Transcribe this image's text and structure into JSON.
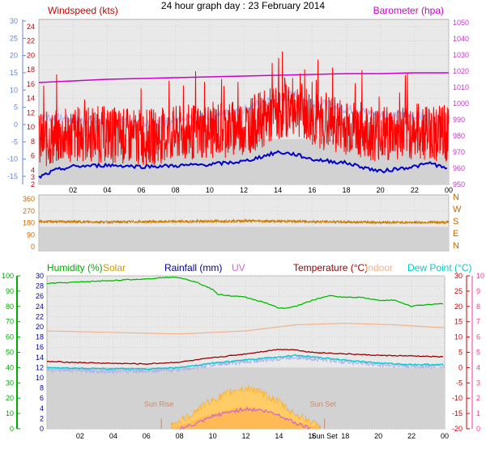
{
  "title": "24 hour graph day : 23 February 2014",
  "colors": {
    "wind": "#ff0000",
    "baro": "#cc00cc",
    "dir": "#cc7a00",
    "humidity": "#00bb00",
    "solar": "#cc9900",
    "rain": "#000099",
    "uv": "#cc66cc",
    "temp": "#990000",
    "indoor": "#f2b38c",
    "dew": "#00cccc",
    "grid": "#d4d4d4",
    "axis_blue": "#6688cc",
    "axis_purple": "#cc33cc",
    "axis_red": "#cc0000",
    "axis_green": "#00aa00",
    "axis_pink": "#ff3399"
  },
  "chart_data": [
    {
      "type": "line",
      "title": "Windspeed (kts) / Barometer (hpa)",
      "labels": {
        "left": "Windspeed (kts)",
        "right": "Barometer (hpa)"
      },
      "x_ticks": [
        "02",
        "04",
        "06",
        "08",
        "10",
        "12",
        "14",
        "16",
        "18",
        "20",
        "22",
        "00"
      ],
      "x_range_hours": [
        0,
        24
      ],
      "y_left": {
        "range": [
          2,
          25
        ],
        "ticks": [
          2,
          3,
          4,
          6,
          8,
          10,
          12,
          14,
          16,
          18,
          20,
          22,
          24
        ]
      },
      "y_right": {
        "range": [
          950,
          1052
        ],
        "ticks": [
          950,
          960,
          970,
          980,
          990,
          1000,
          1010,
          1020,
          1030,
          1040,
          1050
        ]
      },
      "y_far_left": {
        "ticks": [
          -15,
          -10,
          -5,
          0,
          5,
          10,
          15,
          20,
          25,
          30
        ]
      },
      "series": [
        {
          "name": "Barometer",
          "axis": "right",
          "x": [
            0,
            2,
            4,
            6,
            8,
            10,
            12,
            14,
            16,
            18,
            20,
            22,
            24
          ],
          "values": [
            1013,
            1014,
            1015,
            1015.5,
            1016,
            1016.5,
            1017,
            1017.5,
            1018,
            1018.5,
            1018.5,
            1019,
            1019
          ]
        },
        {
          "name": "Windspeed avg (light)",
          "axis": "left",
          "x": [
            0,
            2,
            4,
            6,
            8,
            10,
            12,
            14,
            15,
            16,
            18,
            20,
            22,
            24
          ],
          "values": [
            11.5,
            11.0,
            10.8,
            10.6,
            10.8,
            11.5,
            12.5,
            14.0,
            14.5,
            13.5,
            12.5,
            11.8,
            11.5,
            11.3
          ]
        },
        {
          "name": "Windspeed gust",
          "axis": "left",
          "x": [
            0,
            2,
            4,
            6,
            8,
            10,
            12,
            14,
            15,
            16,
            18,
            20,
            22,
            24
          ],
          "values": [
            8,
            9,
            9,
            8.5,
            9,
            9.5,
            10,
            12,
            13,
            11,
            10,
            9,
            9.5,
            9
          ]
        },
        {
          "name": "Windspeed low",
          "axis": "left",
          "x": [
            0,
            1,
            2,
            4,
            6,
            8,
            10,
            12,
            14,
            15,
            16,
            18,
            20,
            21,
            22,
            23,
            24
          ],
          "values": [
            3,
            4,
            4.5,
            4.7,
            4.5,
            4.6,
            4.8,
            5.2,
            6.5,
            6.2,
            5.5,
            5,
            3.8,
            4.2,
            4.5,
            5,
            4
          ]
        }
      ]
    },
    {
      "type": "line",
      "title": "Wind direction",
      "x_ticks": [
        "02",
        "04",
        "06",
        "08",
        "10",
        "12",
        "14",
        "16",
        "18",
        "20",
        "22",
        "00"
      ],
      "y_left": {
        "range": [
          0,
          360
        ],
        "ticks": [
          0,
          90,
          180,
          270,
          360
        ]
      },
      "y_right_labels": [
        "N",
        "W",
        "S",
        "E",
        "N"
      ],
      "series": [
        {
          "name": "Direction",
          "x": [
            0,
            4,
            8,
            12,
            16,
            20,
            24
          ],
          "values": [
            190,
            187,
            190,
            195,
            190,
            184,
            184
          ]
        }
      ]
    },
    {
      "type": "line",
      "labels": [
        "Humidity (%)",
        "Solar",
        "Rainfall (mm)",
        "UV",
        "Temperature (°C)",
        "Indoor",
        "Dew Point (°C)"
      ],
      "x_ticks": [
        "02",
        "04",
        "06",
        "08",
        "10",
        "12",
        "14",
        "16",
        "Sun Set",
        "18",
        "20",
        "22",
        "00"
      ],
      "y_humidity": {
        "range": [
          0,
          100
        ],
        "ticks": [
          0,
          10,
          20,
          30,
          40,
          50,
          60,
          70,
          80,
          90,
          100
        ]
      },
      "y_rain": {
        "range": [
          0,
          30
        ],
        "ticks": [
          0,
          2,
          4,
          6,
          8,
          10,
          12,
          14,
          16,
          18,
          20,
          22,
          24,
          26,
          28,
          30
        ]
      },
      "y_temp": {
        "range": [
          -20,
          30
        ],
        "ticks": [
          -20,
          -15,
          -10,
          -5,
          0,
          5,
          10,
          15,
          20,
          25,
          30
        ]
      },
      "y_uv": {
        "range": [
          0,
          10
        ],
        "ticks": [
          0,
          1,
          2,
          3,
          4,
          5,
          6,
          7,
          8,
          9,
          10
        ]
      },
      "annotations": [
        "Sun Rise",
        "Sun Set"
      ],
      "series": [
        {
          "name": "Humidity",
          "axis": "humidity",
          "x": [
            0,
            2,
            4,
            6,
            7,
            8,
            9,
            10,
            10.3,
            11,
            12,
            13,
            13.5,
            14,
            14.5,
            15,
            16,
            17,
            18,
            19,
            20,
            21,
            22,
            22.5,
            23,
            24
          ],
          "values": [
            95,
            96,
            97,
            98,
            99,
            99,
            96,
            91,
            88,
            87,
            86,
            83,
            81,
            79,
            79,
            80,
            84,
            87,
            86,
            86,
            84,
            84,
            80,
            81,
            81,
            82
          ]
        },
        {
          "name": "Indoor",
          "axis": "temp",
          "x": [
            0,
            4,
            8,
            12,
            15,
            18,
            21,
            24
          ],
          "values": [
            12,
            11.5,
            11,
            12,
            14,
            14.5,
            14,
            13
          ]
        },
        {
          "name": "Temperature",
          "axis": "temp",
          "x": [
            0,
            3,
            6,
            8,
            10,
            12,
            14,
            15,
            16,
            18,
            20,
            22,
            24
          ],
          "values": [
            2,
            1.5,
            1.2,
            1.8,
            3.2,
            4.5,
            6,
            5.8,
            5,
            4.5,
            4,
            3.8,
            3.5
          ]
        },
        {
          "name": "Dew Point",
          "axis": "temp",
          "x": [
            0,
            3,
            6,
            8,
            10,
            12,
            14,
            15,
            16,
            18,
            20,
            22,
            24
          ],
          "values": [
            0,
            -0.3,
            -0.5,
            0,
            1.5,
            2.5,
            3.5,
            4,
            3.5,
            2.5,
            1.5,
            1,
            1
          ]
        },
        {
          "name": "Dew Point (light)",
          "axis": "temp",
          "x": [
            0,
            3,
            6,
            8,
            10,
            12,
            14,
            15,
            16,
            18,
            20,
            22,
            24
          ],
          "values": [
            -0.5,
            -1,
            -1,
            -0.5,
            1,
            2,
            3,
            3.5,
            3,
            2,
            1,
            0.5,
            0.5
          ]
        },
        {
          "name": "Solar",
          "axis": "rain",
          "x": [
            7.5,
            8.5,
            9.5,
            10.5,
            11.5,
            12.5,
            13,
            14,
            14.5,
            15,
            16,
            16.5
          ],
          "values": [
            0.5,
            2,
            4.5,
            6,
            7.5,
            7.5,
            6.5,
            5,
            3.5,
            2.5,
            1,
            0
          ]
        },
        {
          "name": "UV",
          "axis": "uv",
          "x": [
            8,
            9,
            10,
            11,
            12,
            13,
            14,
            15,
            16
          ],
          "values": [
            0,
            0.3,
            0.8,
            1.1,
            1.3,
            1.2,
            0.9,
            0.4,
            0
          ]
        }
      ]
    }
  ]
}
